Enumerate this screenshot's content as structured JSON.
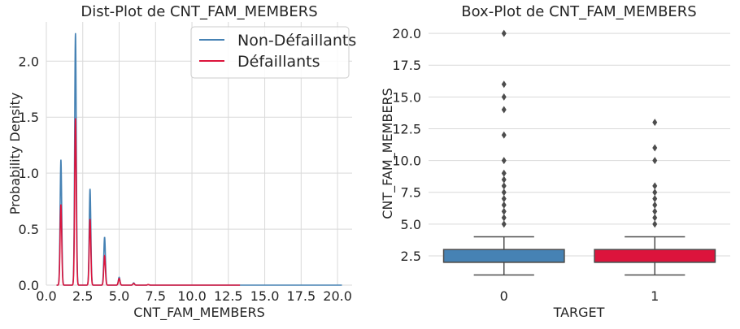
{
  "chart_data": [
    {
      "type": "line",
      "title": "Dist-Plot de CNT_FAM_MEMBERS",
      "xlabel": "CNT_FAM_MEMBERS",
      "ylabel": "Probability Density",
      "xlim": [
        0,
        21
      ],
      "ylim": [
        0,
        2.35
      ],
      "xticks": [
        "0.0",
        "2.5",
        "5.0",
        "7.5",
        "10.0",
        "12.5",
        "15.0",
        "17.5",
        "20.0"
      ],
      "xtick_values": [
        0,
        2.5,
        5,
        7.5,
        10,
        12.5,
        15,
        17.5,
        20
      ],
      "yticks": [
        "0.0",
        "0.5",
        "1.0",
        "1.5",
        "2.0"
      ],
      "ytick_values": [
        0,
        0.5,
        1,
        1.5,
        2
      ],
      "grid": true,
      "legend": "top-right",
      "series": [
        {
          "name": "Non-Défaillants",
          "color": "#4682b4",
          "x_range": [
            0.7,
            20.3
          ],
          "peaks": [
            [
              1,
              1.12
            ],
            [
              2,
              2.25
            ],
            [
              3,
              0.86
            ],
            [
              4,
              0.43
            ],
            [
              5,
              0.07
            ],
            [
              6,
              0.02
            ],
            [
              7,
              0.005
            ]
          ]
        },
        {
          "name": "Défaillants",
          "color": "#dc143c",
          "x_range": [
            0.7,
            13.3
          ],
          "peaks": [
            [
              1,
              0.72
            ],
            [
              2,
              1.49
            ],
            [
              3,
              0.59
            ],
            [
              4,
              0.26
            ],
            [
              5,
              0.06
            ],
            [
              6,
              0.015
            ],
            [
              7,
              0.005
            ]
          ]
        }
      ]
    },
    {
      "type": "box",
      "title": "Box-Plot de CNT_FAM_MEMBERS",
      "xlabel": "TARGET",
      "ylabel": "CNT_FAM_MEMBERS",
      "ylim": [
        0.2,
        20.9
      ],
      "yticks": [
        "2.5",
        "5.0",
        "7.5",
        "10.0",
        "12.5",
        "15.0",
        "17.5",
        "20.0"
      ],
      "ytick_values": [
        2.5,
        5,
        7.5,
        10,
        12.5,
        15,
        17.5,
        20
      ],
      "categories": [
        "0",
        "1"
      ],
      "grid": true,
      "boxes": [
        {
          "category": "0",
          "color": "#4682b4",
          "whisker_low": 1,
          "q1": 2,
          "median": 2,
          "q3": 3,
          "whisker_high": 4,
          "outliers": [
            5,
            5.5,
            6,
            6.5,
            7,
            7.5,
            8,
            8.5,
            9,
            10,
            12,
            14,
            15,
            16,
            20
          ]
        },
        {
          "category": "1",
          "color": "#dc143c",
          "whisker_low": 1,
          "q1": 2,
          "median": 2,
          "q3": 3,
          "whisker_high": 4,
          "outliers": [
            5,
            5.5,
            6,
            6.5,
            7,
            7.5,
            8,
            10,
            11,
            13
          ]
        }
      ]
    }
  ]
}
